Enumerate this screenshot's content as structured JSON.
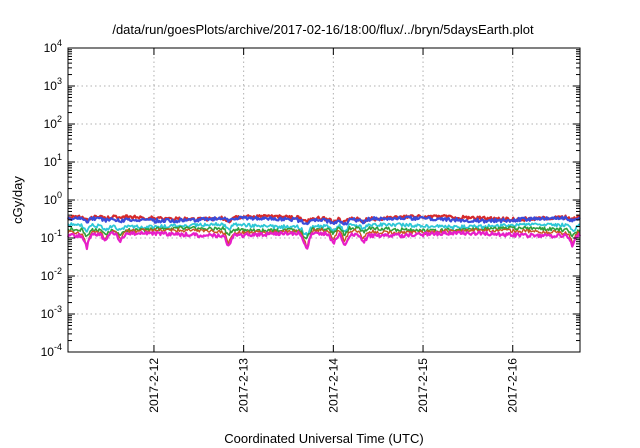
{
  "chart_data": {
    "type": "line",
    "title": "/data/run/goesPlots/archive/2017-02-16/18:00/flux/../bryn/5daysEarth.plot",
    "xlabel": "Coordinated Universal Time (UTC)",
    "ylabel": "cGy/day",
    "y_scale": "log",
    "ylim": [
      0.0001,
      10000
    ],
    "y_ticks": [
      {
        "base": "10",
        "exp": "-4",
        "value": 0.0001
      },
      {
        "base": "10",
        "exp": "-3",
        "value": 0.001
      },
      {
        "base": "10",
        "exp": "-2",
        "value": 0.01
      },
      {
        "base": "10",
        "exp": "-1",
        "value": 0.1
      },
      {
        "base": "10",
        "exp": "0",
        "value": 1
      },
      {
        "base": "10",
        "exp": "1",
        "value": 10
      },
      {
        "base": "10",
        "exp": "2",
        "value": 100
      },
      {
        "base": "10",
        "exp": "3",
        "value": 1000
      },
      {
        "base": "10",
        "exp": "4",
        "value": 10000
      }
    ],
    "xlim": [
      "2017-02-11 01:00",
      "2017-02-16 18:00"
    ],
    "x_ticks": [
      {
        "label": "2017-2-12",
        "value": "2017-02-12 00:00"
      },
      {
        "label": "2017-2-13",
        "value": "2017-02-13 00:00"
      },
      {
        "label": "2017-2-14",
        "value": "2017-02-14 00:00"
      },
      {
        "label": "2017-2-15",
        "value": "2017-02-15 00:00"
      },
      {
        "label": "2017-2-16",
        "value": "2017-02-16 00:00"
      }
    ],
    "grid": true,
    "legend": "none",
    "dips": [
      {
        "time": "2017-02-11 06:00",
        "depth": 0.55
      },
      {
        "time": "2017-02-11 11:00",
        "depth": 0.35
      },
      {
        "time": "2017-02-11 15:00",
        "depth": 0.4
      },
      {
        "time": "2017-02-12 20:00",
        "depth": 0.5
      },
      {
        "time": "2017-02-13 16:00",
        "depth": 0.35
      },
      {
        "time": "2017-02-13 17:00",
        "depth": 0.6
      },
      {
        "time": "2017-02-14 00:00",
        "depth": 0.5
      },
      {
        "time": "2017-02-14 03:00",
        "depth": 0.55
      },
      {
        "time": "2017-02-14 08:00",
        "depth": 0.35
      },
      {
        "time": "2017-02-16 16:00",
        "depth": 0.5
      }
    ],
    "series": [
      {
        "color": "#d62a2a",
        "level": 0.34,
        "width": 2.2
      },
      {
        "color": "#3a4bd9",
        "level": 0.31,
        "width": 2.2
      },
      {
        "color": "#2ec7d6",
        "level": 0.21,
        "width": 1.8
      },
      {
        "color": "#2f9e3a",
        "level": 0.17,
        "width": 1.6
      },
      {
        "color": "#c8551f",
        "level": 0.15,
        "width": 1.4
      },
      {
        "color": "#e81ec8",
        "level": 0.125,
        "width": 2.2
      }
    ]
  }
}
